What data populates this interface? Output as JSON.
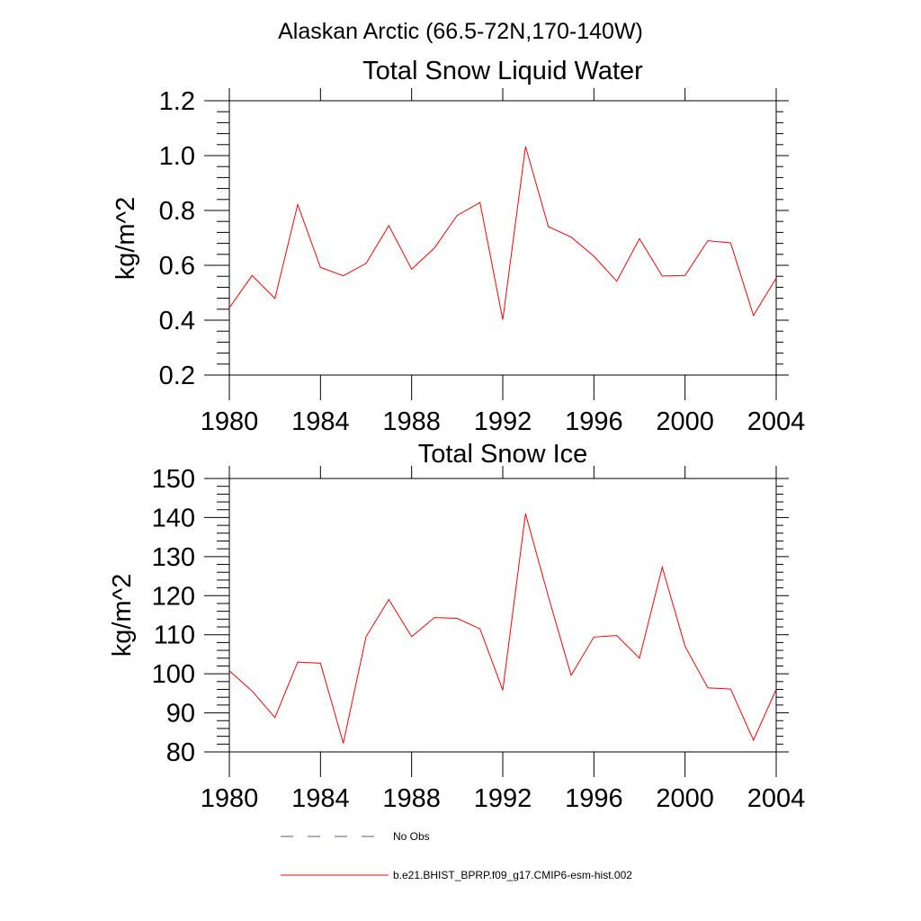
{
  "figure_title": "Alaskan Arctic (66.5-72N,170-140W)",
  "chart_data": [
    {
      "type": "line",
      "title": "Total Snow Liquid Water",
      "xlabel": "",
      "ylabel": "kg/m^2",
      "xlim": [
        1980,
        2004
      ],
      "ylim": [
        0.2,
        1.2
      ],
      "xticks": [
        1980,
        1984,
        1988,
        1992,
        1996,
        2000,
        2004
      ],
      "yticks": [
        0.2,
        0.4,
        0.6,
        0.8,
        1.0,
        1.2
      ],
      "ytick_labels": [
        "0.2",
        "0.4",
        "0.6",
        "0.8",
        "1.0",
        "1.2"
      ],
      "x": [
        1980,
        1981,
        1982,
        1983,
        1984,
        1985,
        1986,
        1987,
        1988,
        1989,
        1990,
        1991,
        1992,
        1993,
        1994,
        1995,
        1996,
        1997,
        1998,
        1999,
        2000,
        2001,
        2002,
        2003,
        2004
      ],
      "series": [
        {
          "name": "b.e21.BHIST_BPRP.f09_g17.CMIP6-esm-hist.002",
          "color": "#ff0000",
          "values": [
            0.445,
            0.563,
            0.479,
            0.822,
            0.592,
            0.562,
            0.607,
            0.745,
            0.586,
            0.663,
            0.782,
            0.829,
            0.402,
            1.033,
            0.741,
            0.703,
            0.633,
            0.542,
            0.697,
            0.561,
            0.563,
            0.69,
            0.682,
            0.417,
            0.553
          ]
        }
      ]
    },
    {
      "type": "line",
      "title": "Total Snow Ice",
      "xlabel": "",
      "ylabel": "kg/m^2",
      "xlim": [
        1980,
        2004
      ],
      "ylim": [
        80,
        150
      ],
      "xticks": [
        1980,
        1984,
        1988,
        1992,
        1996,
        2000,
        2004
      ],
      "yticks": [
        80,
        90,
        100,
        110,
        120,
        130,
        140,
        150
      ],
      "ytick_labels": [
        "80",
        "90",
        "100",
        "110",
        "120",
        "130",
        "140",
        "150"
      ],
      "x": [
        1980,
        1981,
        1982,
        1983,
        1984,
        1985,
        1986,
        1987,
        1988,
        1989,
        1990,
        1991,
        1992,
        1993,
        1994,
        1995,
        1996,
        1997,
        1998,
        1999,
        2000,
        2001,
        2002,
        2003,
        2004
      ],
      "series": [
        {
          "name": "b.e21.BHIST_BPRP.f09_g17.CMIP6-esm-hist.002",
          "color": "#ff0000",
          "values": [
            100.8,
            95.6,
            88.8,
            103.0,
            102.7,
            82.2,
            109.5,
            119.0,
            109.5,
            114.4,
            114.2,
            111.5,
            95.8,
            141.0,
            119.8,
            99.6,
            109.4,
            109.8,
            104.0,
            127.3,
            107.0,
            96.4,
            96.1,
            83.0,
            96.0
          ]
        }
      ]
    }
  ],
  "legend": {
    "entries": [
      {
        "label": "No Obs",
        "color": "#5a5a8c",
        "style": "dashed"
      },
      {
        "label": "b.e21.BHIST_BPRP.f09_g17.CMIP6-esm-hist.002",
        "color": "#ff0000",
        "style": "solid"
      }
    ]
  }
}
